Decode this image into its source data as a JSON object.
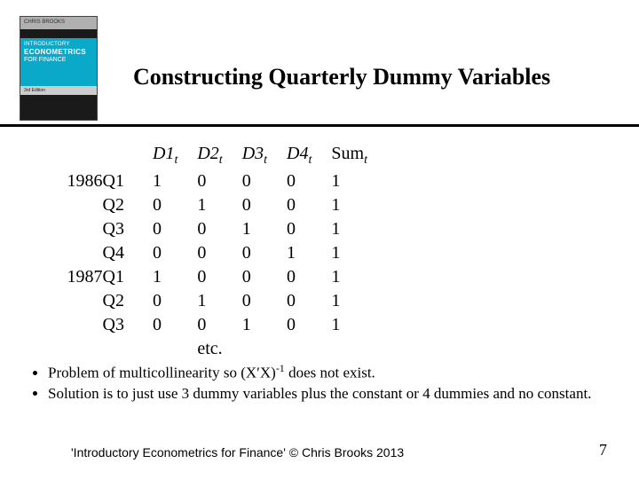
{
  "book": {
    "author_strip": "CHRIS BROOKS",
    "line1": "INTRODUCTORY",
    "line2": "ECONOMETRICS",
    "line3": "FOR FINANCE",
    "edition": "3rd Edition"
  },
  "title": "Constructing Quarterly Dummy Variables",
  "table": {
    "headers": [
      "D1",
      "D2",
      "D3",
      "D4",
      "Sum"
    ],
    "subscript": "t",
    "row_labels": [
      "1986Q1",
      "Q2",
      "Q3",
      "Q4",
      "1987Q1",
      "Q2",
      "Q3"
    ],
    "rows": [
      [
        "1",
        "0",
        "0",
        "0",
        "1"
      ],
      [
        "0",
        "1",
        "0",
        "0",
        "1"
      ],
      [
        "0",
        "0",
        "1",
        "0",
        "1"
      ],
      [
        "0",
        "0",
        "0",
        "1",
        "1"
      ],
      [
        "1",
        "0",
        "0",
        "0",
        "1"
      ],
      [
        "0",
        "1",
        "0",
        "0",
        "1"
      ],
      [
        "0",
        "0",
        "1",
        "0",
        "1"
      ]
    ],
    "etc": "etc."
  },
  "bullets": {
    "b1_pre": "Problem of multicollinearity so (X",
    "b1_prime": "′",
    "b1_mid": "X)",
    "b1_sup": "-1",
    "b1_post": " does not exist.",
    "b2": "Solution is to just use 3 dummy variables plus the constant or 4 dummies and no constant."
  },
  "footer": "'Introductory Econometrics for Finance' © Chris Brooks 2013",
  "page": "7"
}
